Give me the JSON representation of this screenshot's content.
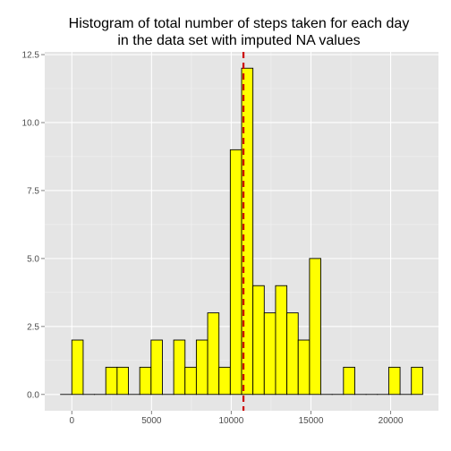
{
  "chart_data": {
    "type": "bar",
    "title_lines": [
      "Histogram of total number of steps taken for each day",
      "in the data set with imputed NA values"
    ],
    "xlabel": "",
    "ylabel": "",
    "bin_width": 710,
    "bins": [
      {
        "x": -355,
        "count": 0
      },
      {
        "x": 355,
        "count": 2
      },
      {
        "x": 1065,
        "count": 0
      },
      {
        "x": 1775,
        "count": 0
      },
      {
        "x": 2485,
        "count": 1
      },
      {
        "x": 3195,
        "count": 1
      },
      {
        "x": 3905,
        "count": 0
      },
      {
        "x": 4615,
        "count": 1
      },
      {
        "x": 5325,
        "count": 2
      },
      {
        "x": 6035,
        "count": 0
      },
      {
        "x": 6745,
        "count": 2
      },
      {
        "x": 7455,
        "count": 1
      },
      {
        "x": 8165,
        "count": 2
      },
      {
        "x": 8875,
        "count": 3
      },
      {
        "x": 9585,
        "count": 1
      },
      {
        "x": 10295,
        "count": 9
      },
      {
        "x": 11005,
        "count": 12
      },
      {
        "x": 11715,
        "count": 4
      },
      {
        "x": 12425,
        "count": 3
      },
      {
        "x": 13135,
        "count": 4
      },
      {
        "x": 13845,
        "count": 3
      },
      {
        "x": 14555,
        "count": 2
      },
      {
        "x": 15265,
        "count": 5
      },
      {
        "x": 15975,
        "count": 0
      },
      {
        "x": 16685,
        "count": 0
      },
      {
        "x": 17395,
        "count": 1
      },
      {
        "x": 18105,
        "count": 0
      },
      {
        "x": 18815,
        "count": 0
      },
      {
        "x": 19525,
        "count": 0
      },
      {
        "x": 20235,
        "count": 1
      },
      {
        "x": 20945,
        "count": 0
      },
      {
        "x": 21655,
        "count": 1
      }
    ],
    "mean_line": {
      "x": 10766,
      "color": "#cc0000",
      "style": "dashed"
    },
    "xlim": [
      -1700,
      23000
    ],
    "ylim": [
      -0.6,
      12.6
    ],
    "x_ticks": [
      0,
      5000,
      10000,
      15000,
      20000
    ],
    "x_tick_labels": [
      "0",
      "5000",
      "10000",
      "15000",
      "20000"
    ],
    "y_ticks": [
      0,
      2.5,
      5,
      7.5,
      10,
      12.5
    ],
    "y_tick_labels": [
      "0.0",
      "2.5",
      "5.0",
      "7.5",
      "10.0",
      "12.5"
    ],
    "grid": true,
    "legend": "none",
    "colors": {
      "bar_fill": "#ffff00",
      "bar_outline": "#000000",
      "panel_background": "#e5e5e5",
      "grid_major": "#ffffff",
      "grid_minor": "#f2f2f2"
    }
  }
}
